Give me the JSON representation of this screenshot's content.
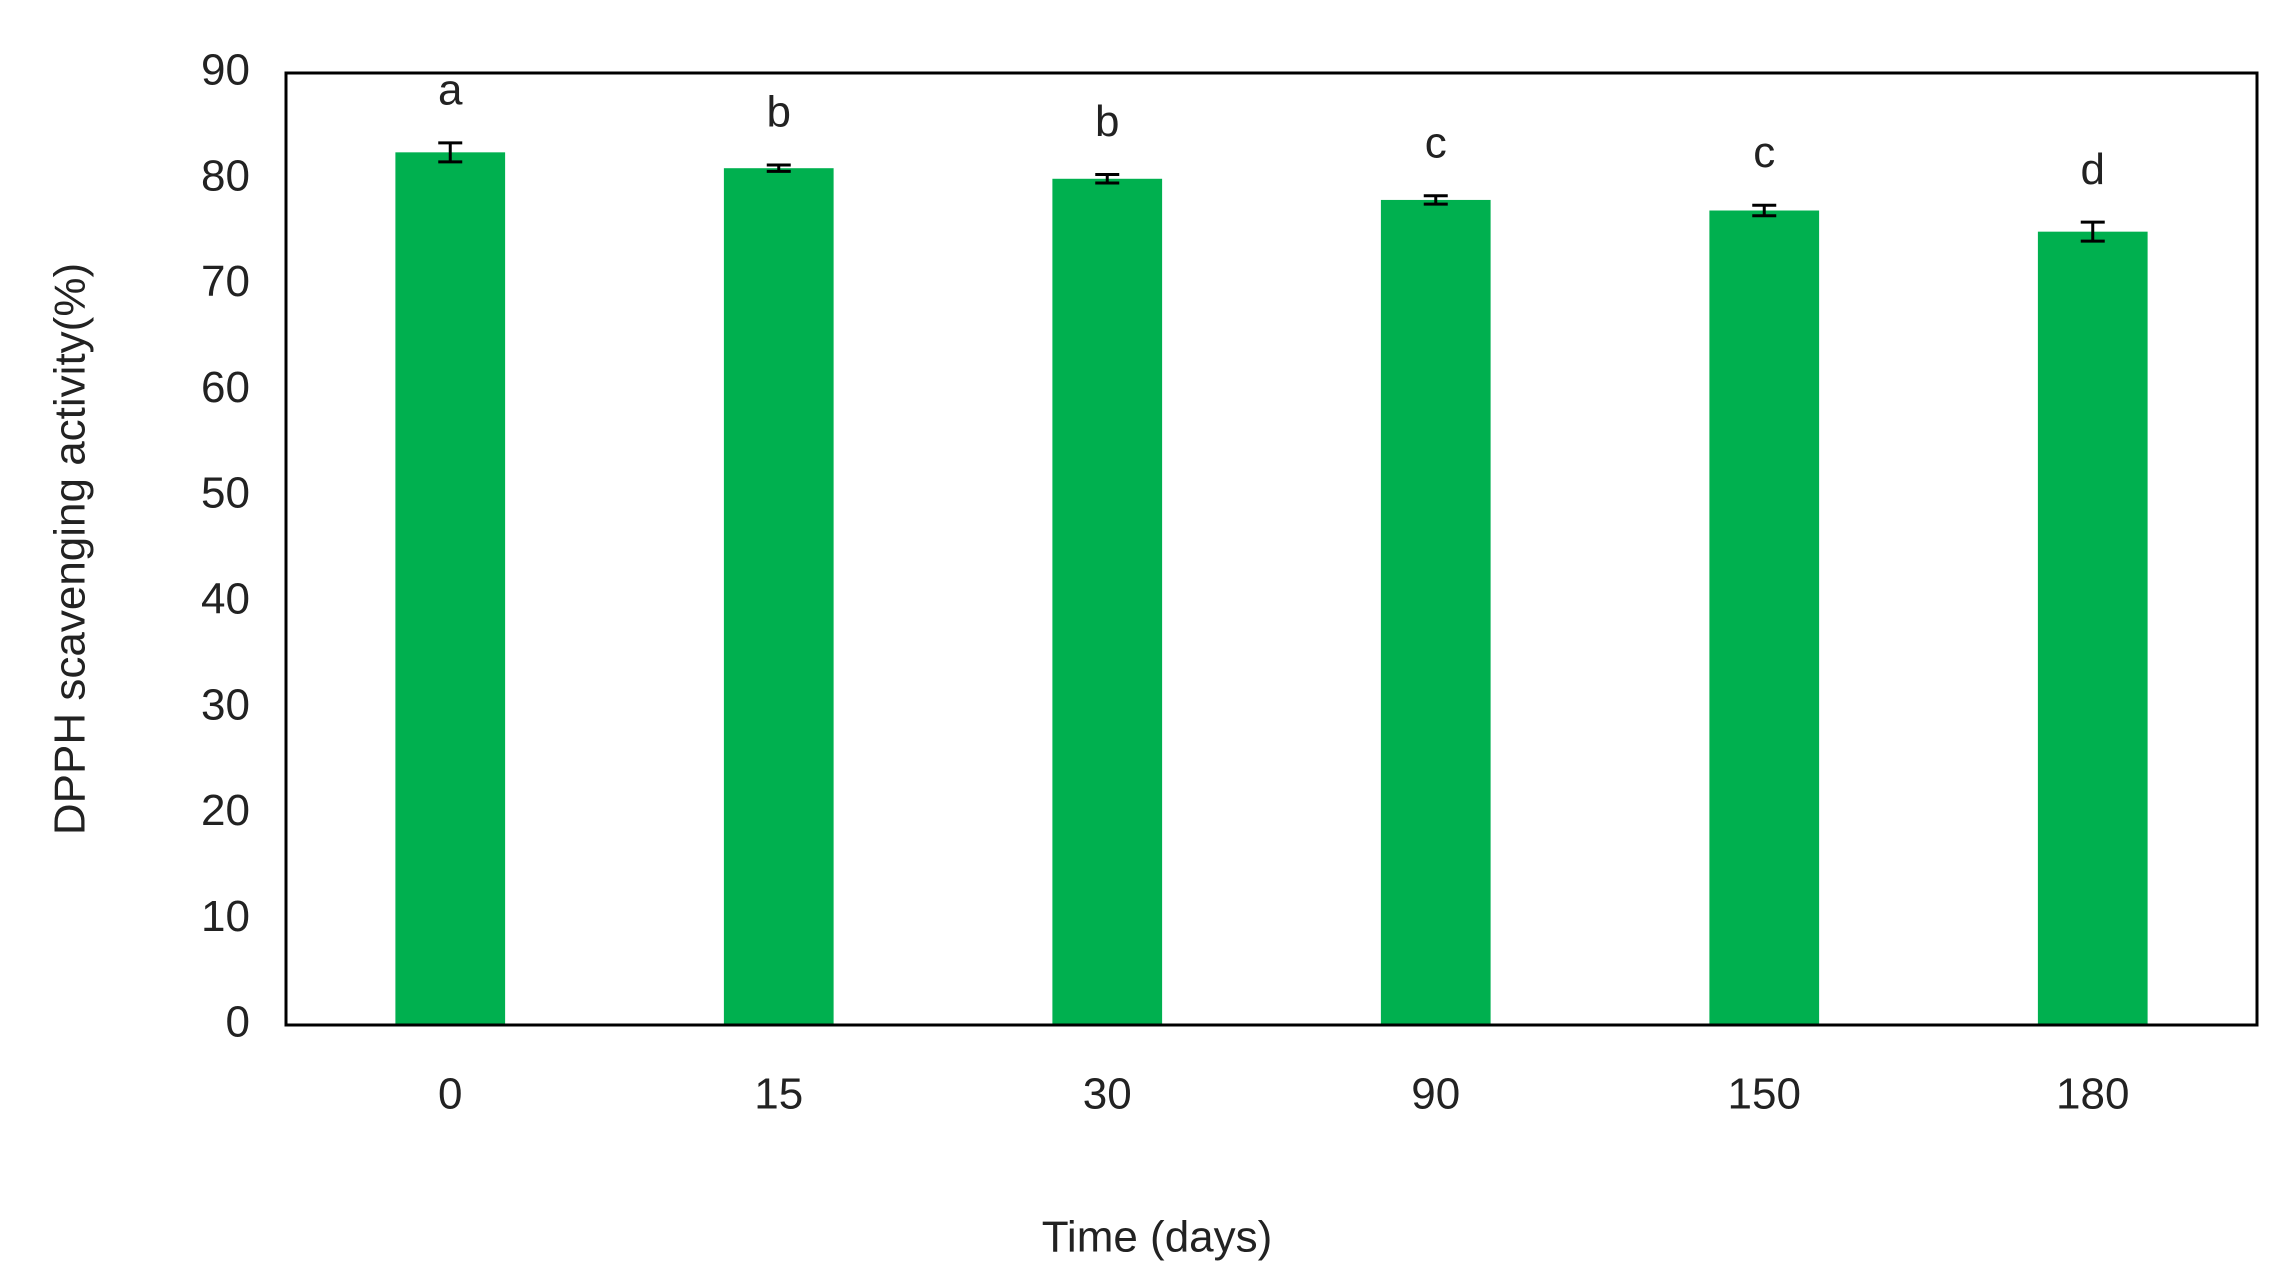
{
  "chart_data": {
    "type": "bar",
    "x_label": "Time (days)",
    "y_label": "DPPH scavenging activity(%)",
    "categories": [
      "0",
      "15",
      "30",
      "90",
      "150",
      "180"
    ],
    "values": [
      82.5,
      81,
      80,
      78,
      77,
      75
    ],
    "errors": [
      0.9,
      0.3,
      0.4,
      0.4,
      0.5,
      0.9
    ],
    "annotations": [
      "a",
      "b",
      "b",
      "c",
      "c",
      "d"
    ],
    "color": "#00b04f",
    "ylim": [
      0,
      90
    ],
    "yticks": [
      0,
      10,
      20,
      30,
      40,
      50,
      60,
      70,
      80,
      90
    ],
    "grid": false
  }
}
